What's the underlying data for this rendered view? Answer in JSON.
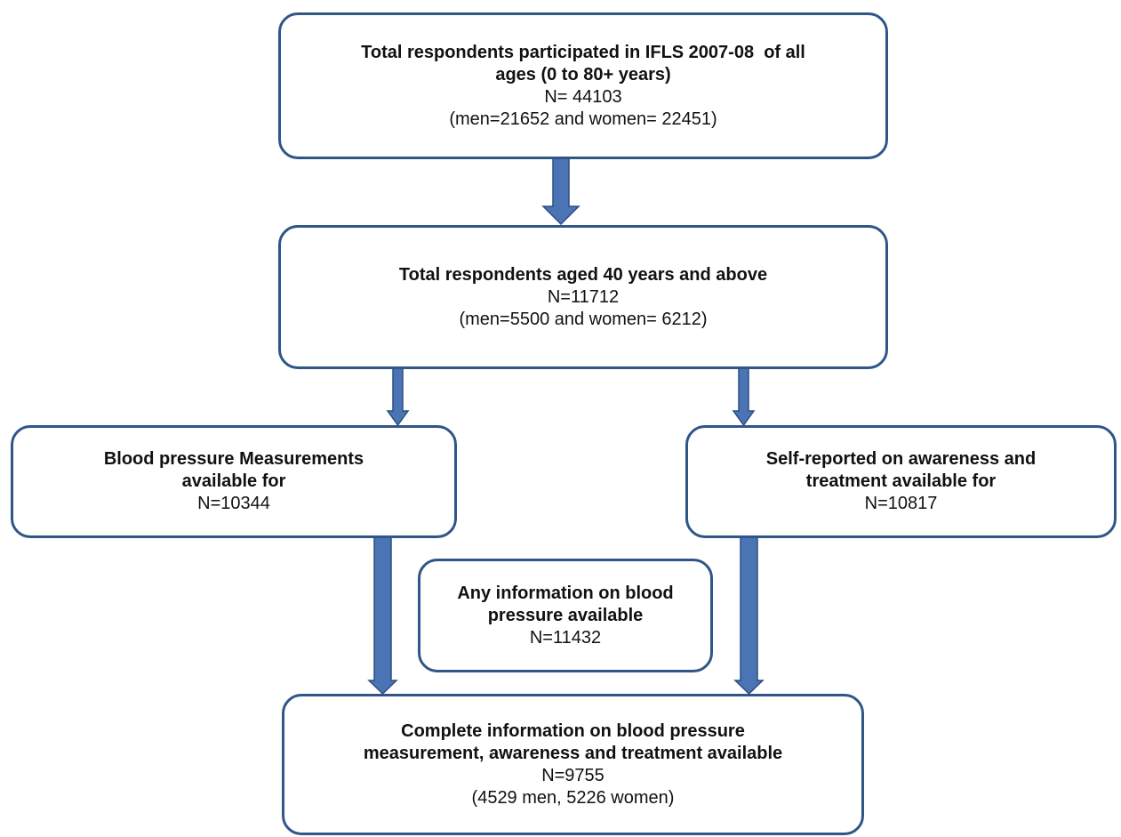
{
  "nodes": [
    {
      "title": [
        "Total respondents participated in IFLS 2007-08  of all",
        "ages (0 to 80+ years)"
      ],
      "lines": [
        "N= 44103",
        "(men=21652 and women= 22451)"
      ]
    },
    {
      "title": [
        "Total respondents aged 40 years and above"
      ],
      "lines": [
        "N=11712",
        "(men=5500 and women= 6212)"
      ]
    },
    {
      "title": [
        "Blood pressure Measurements",
        "available for"
      ],
      "lines": [
        "N=10344"
      ]
    },
    {
      "title": [
        "Self-reported on awareness and",
        "treatment available for"
      ],
      "lines": [
        "N=10817"
      ]
    },
    {
      "title": [
        "Any information on blood",
        "pressure available"
      ],
      "lines": [
        "N=11432"
      ]
    },
    {
      "title": [
        "Complete information on blood pressure",
        "measurement, awareness and treatment available"
      ],
      "lines": [
        "N=9755",
        "(4529 men, 5226 women)"
      ]
    }
  ]
}
